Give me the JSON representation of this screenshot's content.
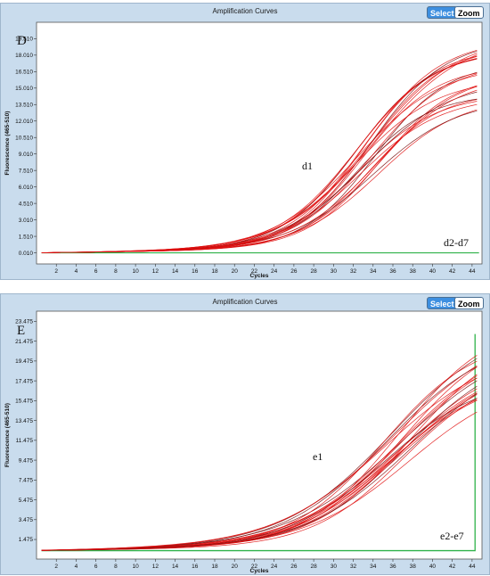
{
  "colors": {
    "amplified": "#e01010",
    "amplified_outline": "#7a1010",
    "negative": "#2fb24a",
    "panel_bg": "#c9dced"
  },
  "buttons": {
    "select_label": "Select",
    "zoom_label": "Zoom"
  },
  "chart_data": [
    {
      "type": "line",
      "title": "Amplification Curves",
      "panel_label": "D",
      "xlabel": "Cycles",
      "ylabel": "Fluorescence (465-510)",
      "x_ticks": [
        2,
        4,
        6,
        8,
        10,
        12,
        14,
        16,
        18,
        20,
        22,
        24,
        26,
        28,
        30,
        32,
        34,
        36,
        38,
        40,
        42,
        44
      ],
      "y_ticks": [
        "0.010",
        "1.510",
        "3.010",
        "4.510",
        "6.010",
        "7.510",
        "9.010",
        "10.510",
        "12.010",
        "13.510",
        "15.010",
        "16.510",
        "18.010",
        "19.510"
      ],
      "xlim": [
        0,
        45
      ],
      "ylim": [
        -1,
        21
      ],
      "positive_curves": {
        "annotation": "d1",
        "count": 24,
        "cycle_threshold_range": [
          27.5,
          30.5
        ],
        "plateau_range": [
          13.5,
          19.5
        ]
      },
      "negative_curves": {
        "annotation": "d2-d7",
        "value": 0.01
      }
    },
    {
      "type": "line",
      "title": "Amplification Curves",
      "panel_label": "E",
      "xlabel": "Cycles",
      "ylabel": "Fluorescence (465-510)",
      "x_ticks": [
        2,
        4,
        6,
        8,
        10,
        12,
        14,
        16,
        18,
        20,
        22,
        24,
        26,
        28,
        30,
        32,
        34,
        36,
        38,
        40,
        42,
        44
      ],
      "y_ticks": [
        "1.475",
        "3.475",
        "5.475",
        "7.475",
        "9.475",
        "11.475",
        "13.475",
        "15.475",
        "17.475",
        "19.475",
        "21.475",
        "23.475"
      ],
      "xlim": [
        0,
        45
      ],
      "ylim": [
        -0.5,
        24.5
      ],
      "positive_curves": {
        "annotation": "e1",
        "count": 22,
        "cycle_threshold_range": [
          28.5,
          31.5
        ],
        "plateau_range": [
          17.5,
          23.5
        ]
      },
      "negative_curves": {
        "annotation": "e2-e7",
        "value": 0.35
      }
    }
  ]
}
